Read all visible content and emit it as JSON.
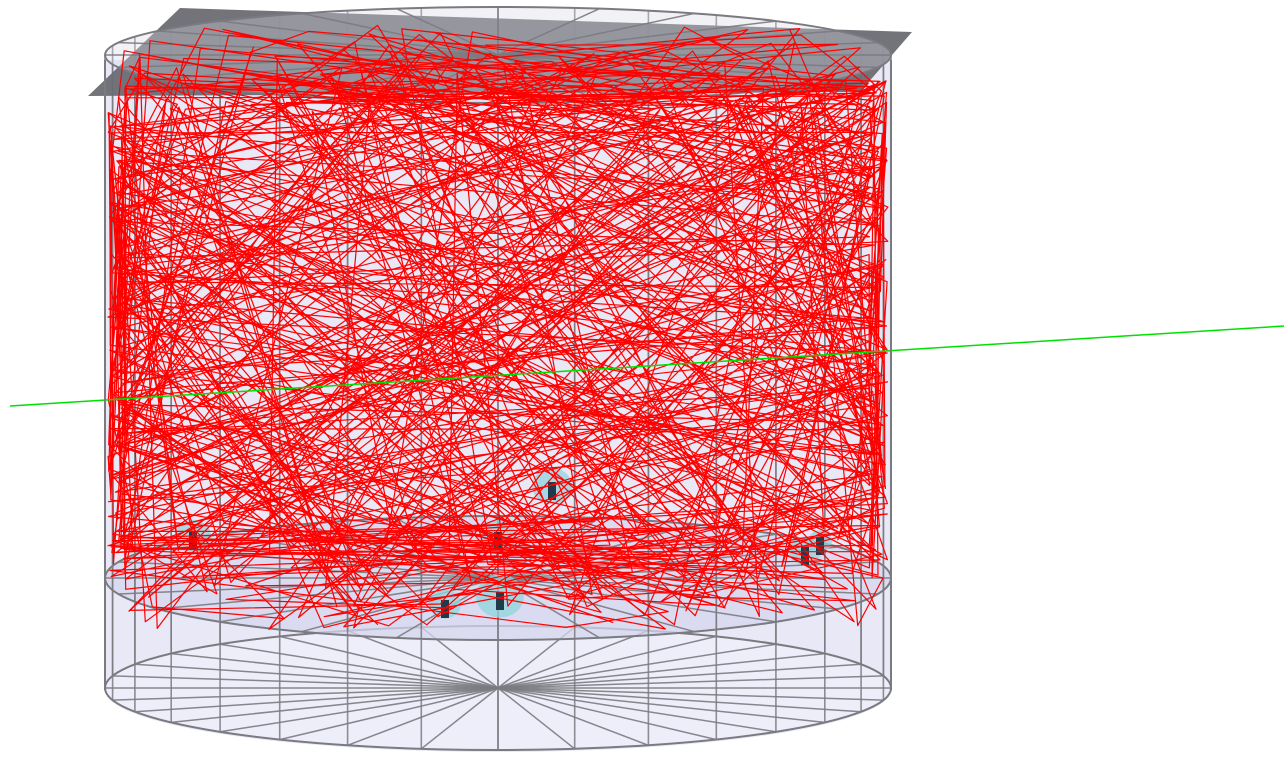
{
  "scene": {
    "description_free": true,
    "colors": {
      "background": "#ffffff",
      "wireframe": "#7a7a80",
      "volume_fill": "#e8e8f6",
      "top_plate": "#6b6b73",
      "bottom_disc": "#d6d6ee",
      "tracks": "#ff0000",
      "axis": "#00e000",
      "pmt_glass": "#8fd6de",
      "pmt_base": "#1f3a4a"
    },
    "icons": [
      "cylinder-wireframe",
      "photomultiplier-tube"
    ]
  }
}
